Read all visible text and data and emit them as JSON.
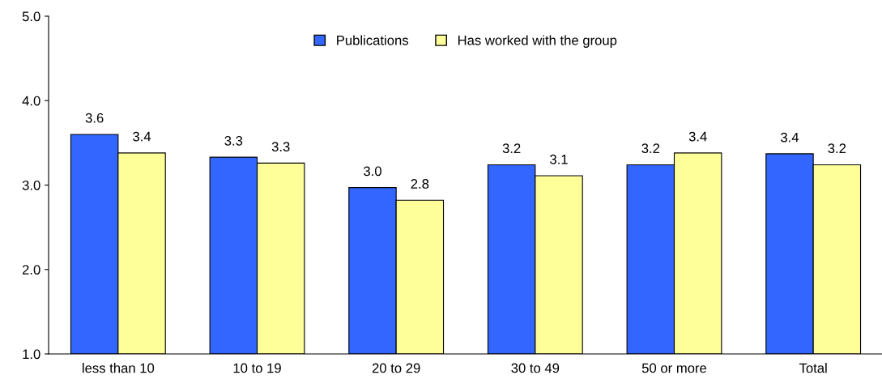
{
  "chart_data": {
    "type": "bar",
    "categories": [
      "less than 10",
      "10 to 19",
      "20 to 29",
      "30 to 49",
      "50 or more",
      "Total"
    ],
    "series": [
      {
        "name": "Publications",
        "color": "#3366ff",
        "values": [
          3.6,
          3.33,
          2.97,
          3.24,
          3.24,
          3.37
        ],
        "value_labels": [
          "3.6",
          "3.3",
          "3.0",
          "3.2",
          "3.2",
          "3.4"
        ]
      },
      {
        "name": "Has worked with the group",
        "color": "#ffff99",
        "values": [
          3.38,
          3.26,
          2.82,
          3.11,
          3.38,
          3.24
        ],
        "value_labels": [
          "3.4",
          "3.3",
          "2.8",
          "3.1",
          "3.4",
          "3.2"
        ]
      }
    ],
    "ylim": [
      1.0,
      5.0
    ],
    "yticks": [
      {
        "value": 1,
        "label": "1.0"
      },
      {
        "value": 2,
        "label": "2.0"
      },
      {
        "value": 3,
        "label": "3.0"
      },
      {
        "value": 4,
        "label": "4.0"
      },
      {
        "value": 5,
        "label": "5.0"
      }
    ],
    "grid": false,
    "legend": "top"
  }
}
